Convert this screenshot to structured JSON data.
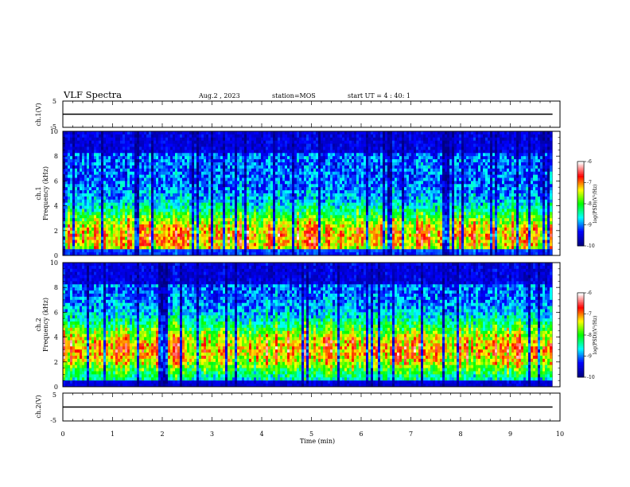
{
  "header": {
    "title": "VLF Spectra",
    "date": "Aug.2 , 2023",
    "station": "station=MOS",
    "start_ut": "start UT = 4 : 40: 1"
  },
  "chart_data": [
    {
      "type": "line",
      "id": "ch1-waveform",
      "ylabel": "ch.1(V)",
      "ylim": [
        -5,
        5
      ],
      "yticks": [
        "5",
        "-5"
      ],
      "x": [
        0,
        9.85
      ],
      "series": [
        {
          "values": [
            0,
            0
          ]
        }
      ]
    },
    {
      "type": "heatmap",
      "id": "ch1-spectrogram",
      "ylabel": "ch.1",
      "ylabel2": "Frequency (kHz)",
      "ylim": [
        0,
        10
      ],
      "yticks": [
        "0",
        "2",
        "4",
        "6",
        "8",
        "10"
      ],
      "xlim": [
        0,
        10
      ],
      "data_extent_min": 9.85,
      "colorbar": {
        "label": "log(PSD)(V²/Hz)",
        "range": [
          -10,
          -6
        ],
        "ticks": [
          "-6",
          "-7",
          "-8",
          "-9",
          "-10"
        ]
      }
    },
    {
      "type": "heatmap",
      "id": "ch2-spectrogram",
      "ylabel": "ch.2",
      "ylabel2": "Frequency (kHz)",
      "ylim": [
        0,
        10
      ],
      "yticks": [
        "0",
        "2",
        "4",
        "6",
        "8",
        "10"
      ],
      "xlim": [
        0,
        10
      ],
      "data_extent_min": 9.85,
      "colorbar": {
        "label": "log(PSD)(V²/Hz)",
        "range": [
          -10,
          -6
        ],
        "ticks": [
          "-6",
          "-7",
          "-8",
          "-9",
          "-10"
        ]
      }
    },
    {
      "type": "line",
      "id": "ch2-waveform",
      "ylabel": "ch.2(V)",
      "ylim": [
        -5,
        5
      ],
      "yticks": [
        "5",
        "-5"
      ],
      "x": [
        0,
        9.85
      ],
      "series": [
        {
          "values": [
            0,
            0
          ]
        }
      ]
    }
  ],
  "xaxis": {
    "label": "Time (min)",
    "ticks": [
      "0",
      "1",
      "2",
      "3",
      "4",
      "5",
      "6",
      "7",
      "8",
      "9",
      "10"
    ],
    "range": [
      0,
      10
    ]
  },
  "colors": {
    "colormap": [
      "#000080",
      "#0000ff",
      "#00ffff",
      "#00ff00",
      "#ffff00",
      "#ff0000",
      "#ffffff"
    ]
  }
}
